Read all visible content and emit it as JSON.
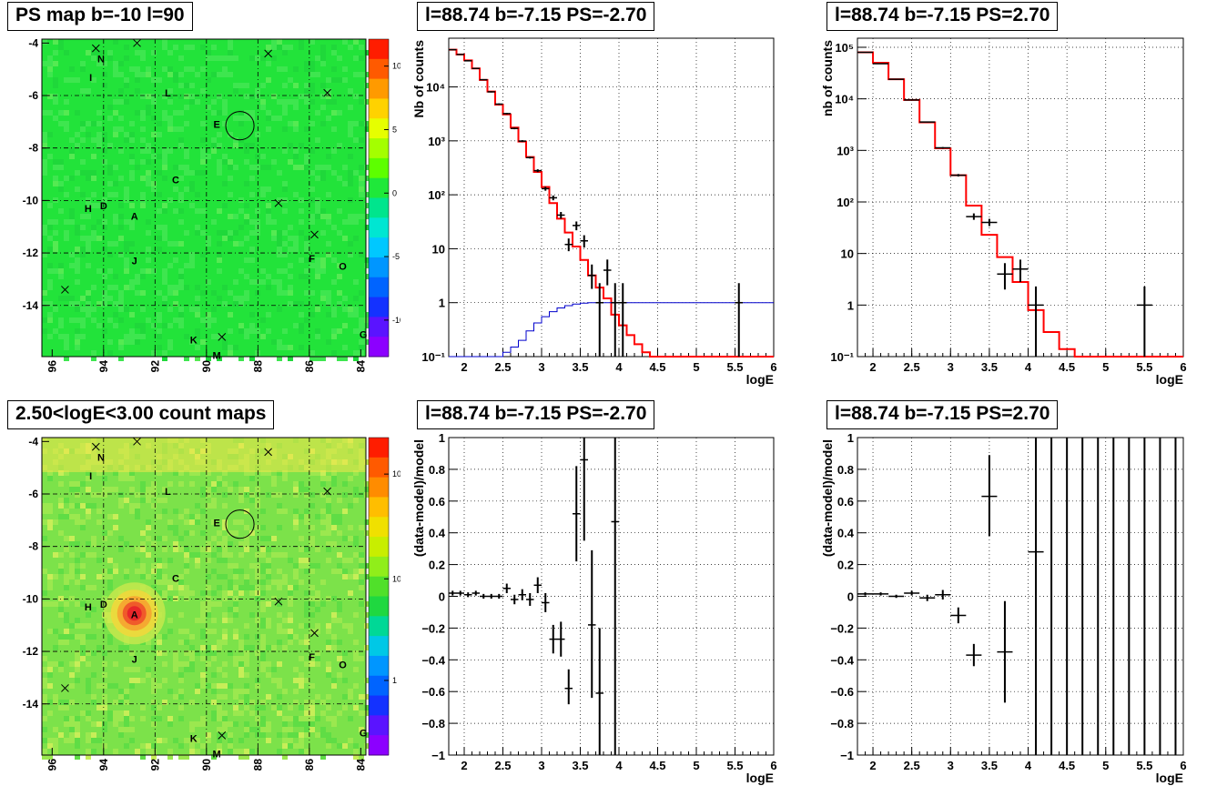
{
  "panels": {
    "map_ps": {
      "title": "PS map b=-10 l=90",
      "x_ticks": [
        "96",
        "94",
        "92",
        "90",
        "88",
        "86",
        "84"
      ],
      "y_ticks": [
        "-4",
        "-6",
        "-8",
        "-10",
        "-12",
        "-14"
      ],
      "colorbar_ticks": [
        "10",
        "5",
        "0",
        "-5",
        "-10"
      ],
      "field_color": "#22e33a",
      "circle_label": "E"
    },
    "map_count": {
      "title": "2.50<logE<3.00 count maps",
      "x_ticks": [
        "96",
        "94",
        "92",
        "90",
        "88",
        "86",
        "84"
      ],
      "y_ticks": [
        "-4",
        "-6",
        "-8",
        "-10",
        "-12",
        "-14"
      ],
      "colorbar_ticks": [
        "10²",
        "10",
        "1"
      ],
      "field_color": "#7ce24a",
      "hotspot_color": "#e8262a"
    },
    "spec_neg": {
      "title": "l=88.74 b=-7.15 PS=-2.70",
      "ylabel": "Nb of counts",
      "xlabel": "logE"
    },
    "spec_pos": {
      "title": "l=88.74 b=-7.15 PS=2.70",
      "ylabel": "nb of counts",
      "xlabel": "logE"
    },
    "res_neg": {
      "title": "l=88.74 b=-7.15 PS=-2.70",
      "ylabel": "(data-model)/model",
      "xlabel": "logE"
    },
    "res_pos": {
      "title": "l=88.74 b=-7.15 PS=2.70",
      "ylabel": "(data-model)/model",
      "xlabel": "logE"
    }
  },
  "source_labels": [
    {
      "name": "N",
      "l": 94.1,
      "b": -4.6
    },
    {
      "name": "I",
      "l": 94.5,
      "b": -5.3
    },
    {
      "name": "L",
      "l": 91.5,
      "b": -5.9
    },
    {
      "name": "E",
      "l": 89.6,
      "b": -7.1
    },
    {
      "name": "C",
      "l": 91.2,
      "b": -9.2
    },
    {
      "name": "H",
      "l": 94.6,
      "b": -10.3
    },
    {
      "name": "D",
      "l": 94.0,
      "b": -10.2
    },
    {
      "name": "A",
      "l": 92.8,
      "b": -10.6
    },
    {
      "name": "J",
      "l": 92.8,
      "b": -12.3
    },
    {
      "name": "F",
      "l": 85.9,
      "b": -12.2
    },
    {
      "name": "O",
      "l": 84.7,
      "b": -12.5
    },
    {
      "name": "G",
      "l": 83.9,
      "b": -15.1
    },
    {
      "name": "K",
      "l": 90.5,
      "b": -15.3
    },
    {
      "name": "M",
      "l": 89.6,
      "b": -15.9
    }
  ],
  "cross_marks": [
    {
      "l": 94.3,
      "b": -4.2
    },
    {
      "l": 92.7,
      "b": -4.0
    },
    {
      "l": 87.6,
      "b": -4.4
    },
    {
      "l": 85.3,
      "b": -5.9
    },
    {
      "l": 87.2,
      "b": -10.1
    },
    {
      "l": 85.8,
      "b": -11.3
    },
    {
      "l": 95.5,
      "b": -13.4
    },
    {
      "l": 89.4,
      "b": -15.2
    }
  ],
  "circle_center": {
    "l": 88.7,
    "b": -7.15,
    "r": 0.55
  },
  "chart_data": [
    {
      "type": "line",
      "title": "l=88.74 b=-7.15 PS=-2.70",
      "xlabel": "logE",
      "ylabel": "Nb of counts",
      "xlim": [
        1.8,
        6
      ],
      "ylim": [
        0.1,
        80000
      ],
      "log_y": true,
      "grid": true,
      "x_ticks": [
        2,
        2.5,
        3,
        3.5,
        4,
        4.5,
        5,
        5.5,
        6
      ],
      "x_tick_labels": [
        "2",
        "2.5",
        "3",
        "3.5",
        "4",
        "4.5",
        "5",
        "5.5",
        "6"
      ],
      "y_ticks": [
        0.1,
        1,
        10,
        100,
        1000,
        10000
      ],
      "y_tick_labels": [
        "10⁻¹",
        "1",
        "10",
        "10²",
        "10³",
        "10⁴"
      ],
      "series": [
        {
          "x": [
            1.8,
            1.9,
            2.0,
            2.1,
            2.2,
            2.3,
            2.4,
            2.5,
            2.6,
            2.7,
            2.8,
            2.9,
            3.0,
            3.1,
            3.2,
            3.3,
            3.4,
            3.5,
            3.6,
            3.7,
            3.8,
            3.9,
            4.0,
            4.1,
            4.2,
            4.3,
            4.4,
            4.5,
            4.6,
            6.0
          ],
          "values": [
            49000,
            40000,
            31000,
            22000,
            13500,
            8200,
            4700,
            3100,
            1760,
            970,
            500,
            265,
            140,
            70,
            36,
            20,
            11,
            6.2,
            3.2,
            1.9,
            1.2,
            0.6,
            0.38,
            0.25,
            0.17,
            0.12,
            0.1,
            0.1,
            0.1,
            0.1
          ],
          "color": "#ff0000",
          "style": "step"
        },
        {
          "x": [
            1.8,
            2.4,
            2.5,
            2.6,
            2.7,
            2.8,
            2.9,
            3.0,
            3.1,
            3.2,
            3.3,
            3.4,
            3.5,
            3.6,
            3.7,
            3.8,
            6.0
          ],
          "values": [
            0.1,
            0.1,
            0.12,
            0.15,
            0.2,
            0.3,
            0.42,
            0.55,
            0.68,
            0.8,
            0.88,
            0.94,
            0.98,
            1.0,
            1.0,
            1.0,
            1.0
          ],
          "color": "#0000cc",
          "style": "step"
        }
      ],
      "points": [
        {
          "x": 1.85,
          "y": 49000,
          "lo": 48000,
          "hi": 50000
        },
        {
          "x": 1.95,
          "y": 40000,
          "lo": 39000,
          "hi": 41000
        },
        {
          "x": 2.05,
          "y": 30500,
          "lo": 29800,
          "hi": 31200
        },
        {
          "x": 2.15,
          "y": 22000,
          "lo": 21500,
          "hi": 22500
        },
        {
          "x": 2.25,
          "y": 13600,
          "lo": 13300,
          "hi": 13900
        },
        {
          "x": 2.35,
          "y": 8100,
          "lo": 7900,
          "hi": 8300
        },
        {
          "x": 2.45,
          "y": 4800,
          "lo": 4650,
          "hi": 4950
        },
        {
          "x": 2.55,
          "y": 3200,
          "lo": 3090,
          "hi": 3310
        },
        {
          "x": 2.65,
          "y": 1700,
          "lo": 1640,
          "hi": 1760
        },
        {
          "x": 2.75,
          "y": 990,
          "lo": 950,
          "hi": 1030
        },
        {
          "x": 2.85,
          "y": 490,
          "lo": 470,
          "hi": 510
        },
        {
          "x": 2.95,
          "y": 280,
          "lo": 263,
          "hi": 297
        },
        {
          "x": 3.05,
          "y": 130,
          "lo": 119,
          "hi": 141
        },
        {
          "x": 3.15,
          "y": 88,
          "lo": 79,
          "hi": 97
        },
        {
          "x": 3.25,
          "y": 42,
          "lo": 36,
          "hi": 48
        },
        {
          "x": 3.35,
          "y": 12,
          "lo": 9,
          "hi": 15.5
        },
        {
          "x": 3.45,
          "y": 27,
          "lo": 22,
          "hi": 32
        },
        {
          "x": 3.55,
          "y": 14,
          "lo": 10.5,
          "hi": 17.8
        },
        {
          "x": 3.65,
          "y": 3.2,
          "lo": 1.8,
          "hi": 5.1
        },
        {
          "x": 3.75,
          "y": 1,
          "lo": 0.1,
          "hi": 2.3
        },
        {
          "x": 3.85,
          "y": 4,
          "lo": 2.1,
          "hi": 6.3
        },
        {
          "x": 3.95,
          "y": 1,
          "lo": 0.1,
          "hi": 2.3
        },
        {
          "x": 4.05,
          "y": 1,
          "lo": 0.1,
          "hi": 2.3
        },
        {
          "x": 5.55,
          "y": 1,
          "lo": 0.1,
          "hi": 2.3
        }
      ]
    },
    {
      "type": "line",
      "title": "l=88.74 b=-7.15 PS=2.70",
      "xlabel": "logE",
      "ylabel": "nb of counts",
      "xlim": [
        1.8,
        6
      ],
      "ylim": [
        0.1,
        150000
      ],
      "log_y": true,
      "grid": true,
      "x_ticks": [
        2,
        2.5,
        3,
        3.5,
        4,
        4.5,
        5,
        5.5,
        6
      ],
      "x_tick_labels": [
        "2",
        "2.5",
        "3",
        "3.5",
        "4",
        "4.5",
        "5",
        "5.5",
        "6"
      ],
      "y_ticks": [
        0.1,
        1,
        10,
        100,
        1000,
        10000,
        100000
      ],
      "y_tick_labels": [
        "10⁻¹",
        "1",
        "10",
        "10²",
        "10³",
        "10⁴",
        "10⁵"
      ],
      "series": [
        {
          "x": [
            1.8,
            2.0,
            2.2,
            2.4,
            2.6,
            2.8,
            3.0,
            3.2,
            3.4,
            3.6,
            3.8,
            4.0,
            4.2,
            4.4,
            4.6,
            6.0
          ],
          "values": [
            80000,
            50000,
            24000,
            9500,
            3500,
            1100,
            330,
            85,
            23,
            8.5,
            2.8,
            0.8,
            0.3,
            0.14,
            0.1,
            0.1
          ],
          "color": "#ff0000",
          "style": "step"
        }
      ],
      "points": [
        {
          "x": 1.9,
          "y": 80000,
          "lo": 79000,
          "hi": 81000
        },
        {
          "x": 2.1,
          "y": 48000,
          "lo": 47300,
          "hi": 48700
        },
        {
          "x": 2.3,
          "y": 24000,
          "lo": 23500,
          "hi": 24500
        },
        {
          "x": 2.5,
          "y": 9500,
          "lo": 9300,
          "hi": 9700
        },
        {
          "x": 2.7,
          "y": 3550,
          "lo": 3480,
          "hi": 3620
        },
        {
          "x": 2.9,
          "y": 1120,
          "lo": 1080,
          "hi": 1160
        },
        {
          "x": 3.1,
          "y": 330,
          "lo": 312,
          "hi": 348
        },
        {
          "x": 3.3,
          "y": 52,
          "lo": 45,
          "hi": 60
        },
        {
          "x": 3.5,
          "y": 40,
          "lo": 34,
          "hi": 47
        },
        {
          "x": 3.7,
          "y": 4,
          "lo": 2,
          "hi": 6.5
        },
        {
          "x": 3.9,
          "y": 5,
          "lo": 2.8,
          "hi": 7.6
        },
        {
          "x": 4.1,
          "y": 1,
          "lo": 0.1,
          "hi": 2.3
        },
        {
          "x": 5.5,
          "y": 1,
          "lo": 0.1,
          "hi": 2.3
        }
      ]
    },
    {
      "type": "scatter",
      "title": "l=88.74 b=-7.15 PS=-2.70",
      "xlabel": "logE",
      "ylabel": "(data-model)/model",
      "xlim": [
        1.8,
        6
      ],
      "ylim": [
        -1,
        1
      ],
      "grid": true,
      "x_ticks": [
        2,
        2.5,
        3,
        3.5,
        4,
        4.5,
        5,
        5.5,
        6
      ],
      "x_tick_labels": [
        "2",
        "2.5",
        "3",
        "3.5",
        "4",
        "4.5",
        "5",
        "5.5",
        "6"
      ],
      "y_ticks": [
        -1,
        -0.8,
        -0.6,
        -0.4,
        -0.2,
        0,
        0.2,
        0.4,
        0.6,
        0.8,
        1
      ],
      "y_tick_labels": [
        "−1",
        "−0.8",
        "−0.6",
        "−0.4",
        "−0.2",
        "0",
        "0.2",
        "0.4",
        "0.6",
        "0.8",
        "1"
      ],
      "points": [
        {
          "x": 1.85,
          "y": 0.02,
          "lo": 0.005,
          "hi": 0.035
        },
        {
          "x": 1.95,
          "y": 0.02,
          "lo": 0.005,
          "hi": 0.035
        },
        {
          "x": 2.05,
          "y": 0.01,
          "lo": -0.005,
          "hi": 0.025
        },
        {
          "x": 2.15,
          "y": 0.02,
          "lo": 0.005,
          "hi": 0.035
        },
        {
          "x": 2.25,
          "y": 0.0,
          "lo": -0.015,
          "hi": 0.015
        },
        {
          "x": 2.35,
          "y": 0.0,
          "lo": -0.015,
          "hi": 0.015
        },
        {
          "x": 2.45,
          "y": 0.0,
          "lo": -0.015,
          "hi": 0.015
        },
        {
          "x": 2.55,
          "y": 0.05,
          "lo": 0.02,
          "hi": 0.08
        },
        {
          "x": 2.65,
          "y": -0.02,
          "lo": -0.05,
          "hi": 0.01
        },
        {
          "x": 2.75,
          "y": 0.01,
          "lo": -0.025,
          "hi": 0.045
        },
        {
          "x": 2.85,
          "y": -0.02,
          "lo": -0.06,
          "hi": 0.02
        },
        {
          "x": 2.95,
          "y": 0.07,
          "lo": 0.02,
          "hi": 0.12
        },
        {
          "x": 3.05,
          "y": -0.04,
          "lo": -0.1,
          "hi": 0.02
        },
        {
          "x": 3.15,
          "y": -0.27,
          "lo": -0.36,
          "hi": -0.18
        },
        {
          "x": 3.25,
          "y": -0.27,
          "lo": -0.38,
          "hi": -0.16
        },
        {
          "x": 3.35,
          "y": -0.58,
          "lo": -0.68,
          "hi": -0.46
        },
        {
          "x": 3.45,
          "y": 0.52,
          "lo": 0.22,
          "hi": 0.82
        },
        {
          "x": 3.55,
          "y": 0.86,
          "lo": 0.35,
          "hi": 1.0
        },
        {
          "x": 3.65,
          "y": -0.18,
          "lo": -0.64,
          "hi": 0.29
        },
        {
          "x": 3.75,
          "y": -0.61,
          "lo": -1.0,
          "hi": -0.2
        },
        {
          "x": 3.95,
          "y": 0.47,
          "lo": -1.0,
          "hi": 1.0
        }
      ]
    },
    {
      "type": "scatter",
      "title": "l=88.74 b=-7.15 PS=2.70",
      "xlabel": "logE",
      "ylabel": "(data-model)/model",
      "xlim": [
        1.8,
        6
      ],
      "ylim": [
        -1,
        1
      ],
      "grid": true,
      "x_ticks": [
        2,
        2.5,
        3,
        3.5,
        4,
        4.5,
        5,
        5.5,
        6
      ],
      "x_tick_labels": [
        "2",
        "2.5",
        "3",
        "3.5",
        "4",
        "4.5",
        "5",
        "5.5",
        "6"
      ],
      "y_ticks": [
        -1,
        -0.8,
        -0.6,
        -0.4,
        -0.2,
        0,
        0.2,
        0.4,
        0.6,
        0.8,
        1
      ],
      "y_tick_labels": [
        "−1",
        "−0.8",
        "−0.6",
        "−0.4",
        "−0.2",
        "0",
        "0.2",
        "0.4",
        "0.6",
        "0.8",
        "1"
      ],
      "points": [
        {
          "x": 1.9,
          "y": 0.015,
          "lo": 0.005,
          "hi": 0.025
        },
        {
          "x": 2.1,
          "y": 0.015,
          "lo": 0.005,
          "hi": 0.025
        },
        {
          "x": 2.3,
          "y": 0.0,
          "lo": -0.01,
          "hi": 0.01
        },
        {
          "x": 2.5,
          "y": 0.02,
          "lo": 0.005,
          "hi": 0.035
        },
        {
          "x": 2.7,
          "y": -0.01,
          "lo": -0.03,
          "hi": 0.01
        },
        {
          "x": 2.9,
          "y": 0.01,
          "lo": -0.02,
          "hi": 0.04
        },
        {
          "x": 3.1,
          "y": -0.12,
          "lo": -0.17,
          "hi": -0.07
        },
        {
          "x": 3.3,
          "y": -0.37,
          "lo": -0.44,
          "hi": -0.3
        },
        {
          "x": 3.5,
          "y": 0.63,
          "lo": 0.38,
          "hi": 0.89
        },
        {
          "x": 3.7,
          "y": -0.35,
          "lo": -0.67,
          "hi": -0.03
        },
        {
          "x": 4.1,
          "y": 0.28,
          "lo": -1.0,
          "hi": 1.0
        },
        {
          "x": 4.3,
          "y": null,
          "lo": -1.0,
          "hi": 1.0
        },
        {
          "x": 4.5,
          "y": null,
          "lo": -1.0,
          "hi": 1.0
        },
        {
          "x": 4.7,
          "y": null,
          "lo": -1.0,
          "hi": 1.0
        },
        {
          "x": 4.9,
          "y": null,
          "lo": -1.0,
          "hi": 1.0
        },
        {
          "x": 5.1,
          "y": null,
          "lo": -1.0,
          "hi": 1.0
        },
        {
          "x": 5.3,
          "y": null,
          "lo": -1.0,
          "hi": 1.0
        },
        {
          "x": 5.5,
          "y": null,
          "lo": -1.0,
          "hi": 1.0
        },
        {
          "x": 5.7,
          "y": null,
          "lo": -1.0,
          "hi": 1.0
        },
        {
          "x": 5.9,
          "y": null,
          "lo": -1.0,
          "hi": 1.0
        }
      ]
    }
  ]
}
